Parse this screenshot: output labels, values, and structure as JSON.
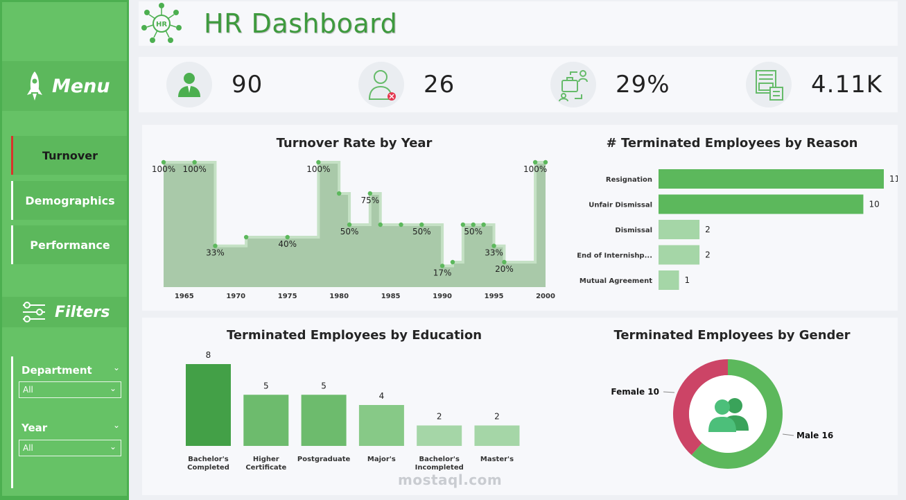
{
  "header": {
    "title": "HR Dashboard",
    "icon": "hr-network-icon"
  },
  "sidebar": {
    "menu_title": "Menu",
    "nav": [
      {
        "label": "Turnover",
        "active": true
      },
      {
        "label": "Demographics",
        "active": false
      },
      {
        "label": "Performance",
        "active": false
      }
    ],
    "filters_title": "Filters",
    "filters": [
      {
        "label": "Department",
        "value": "All"
      },
      {
        "label": "Year",
        "value": "All"
      }
    ]
  },
  "kpis": [
    {
      "value": "90",
      "icon": "employee-icon"
    },
    {
      "value": "26",
      "icon": "terminated-employee-icon"
    },
    {
      "value": "29%",
      "icon": "turnover-transfer-icon"
    },
    {
      "value": "4.11K",
      "icon": "salary-calculator-icon"
    }
  ],
  "colors": {
    "sidebar": "#66c266",
    "accent": "#3e9a3e",
    "bar_dark": "#43a047",
    "bar_mid": "#6dbb6d",
    "bar_light": "#a5d6a7",
    "female": "#cc4466",
    "male": "#5cb85c",
    "area": "#a9c9a9"
  },
  "chart_data": [
    {
      "type": "area",
      "title": "Turnover Rate by Year",
      "x_ticks": [
        "1965",
        "1970",
        "1975",
        "1980",
        "1985",
        "1990",
        "1995",
        "2000"
      ],
      "x": [
        1963,
        1966,
        1968,
        1971,
        1975,
        1978,
        1980,
        1981,
        1983,
        1984,
        1986,
        1988,
        1990,
        1991,
        1992,
        1993,
        1994,
        1995,
        1996,
        1999,
        2000
      ],
      "y": [
        100,
        100,
        33,
        40,
        40,
        100,
        75,
        50,
        75,
        50,
        50,
        50,
        17,
        20,
        50,
        50,
        50,
        33,
        20,
        100,
        100
      ],
      "point_labels": [
        {
          "x": 1963,
          "text": "100%"
        },
        {
          "x": 1966,
          "text": "100%"
        },
        {
          "x": 1968,
          "text": "33%"
        },
        {
          "x": 1975,
          "text": "40%"
        },
        {
          "x": 1978,
          "text": "100%"
        },
        {
          "x": 1981,
          "text": "50%"
        },
        {
          "x": 1983,
          "text": "75%"
        },
        {
          "x": 1988,
          "text": "50%"
        },
        {
          "x": 1990,
          "text": "17%"
        },
        {
          "x": 1993,
          "text": "50%"
        },
        {
          "x": 1995,
          "text": "33%"
        },
        {
          "x": 1996,
          "text": "20%"
        },
        {
          "x": 1999,
          "text": "100%"
        }
      ],
      "xlim": [
        1963,
        2000
      ],
      "ylim": [
        0,
        100
      ]
    },
    {
      "type": "bar",
      "orientation": "horizontal",
      "title": "# Terminated Employees by Reason",
      "categories": [
        "Resignation",
        "Unfair Dismissal",
        "Dismissal",
        "End of Internishp...",
        "Mutual Agreement"
      ],
      "values": [
        11,
        10,
        2,
        2,
        1
      ],
      "xlim": [
        0,
        11
      ]
    },
    {
      "type": "bar",
      "title": "Terminated Employees by Education",
      "categories": [
        [
          "Bachelor's",
          "Completed"
        ],
        [
          "Higher",
          "Certificate"
        ],
        [
          "Postgraduate"
        ],
        [
          "Major's"
        ],
        [
          "Bachelor's",
          "Incompleted"
        ],
        [
          "Master's"
        ]
      ],
      "values": [
        8,
        5,
        5,
        4,
        2,
        2
      ],
      "ylim": [
        0,
        8
      ]
    },
    {
      "type": "pie",
      "donut": true,
      "title": "Terminated Employees by Gender",
      "labels": [
        "Female",
        "Male"
      ],
      "values": [
        10,
        16
      ],
      "center_icon": "people-icon"
    }
  ],
  "watermark": "mostaql.com"
}
